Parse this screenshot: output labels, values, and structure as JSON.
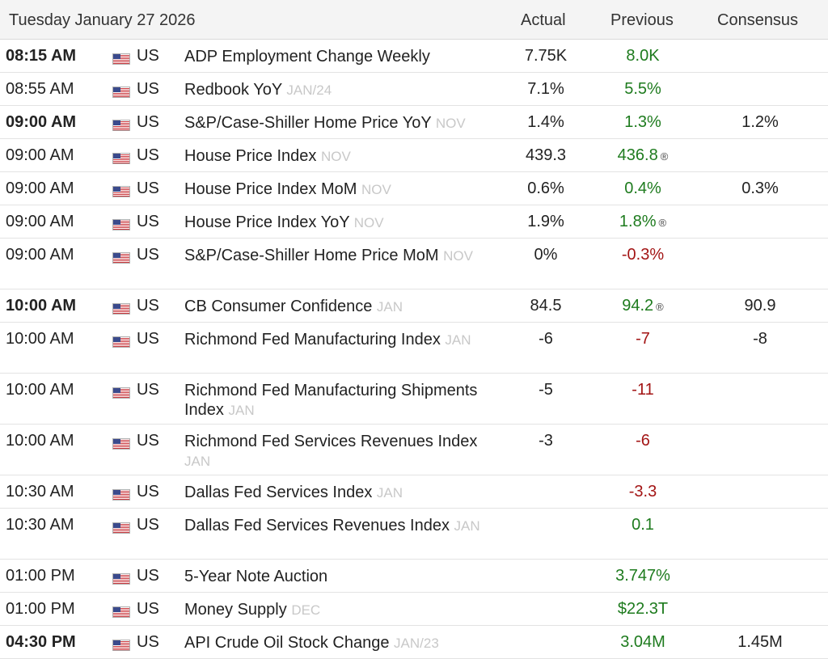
{
  "header": {
    "date": "Tuesday January 27 2026",
    "actual": "Actual",
    "previous": "Previous",
    "consensus": "Consensus"
  },
  "flag_icon": "us-flag-icon",
  "colors": {
    "positive": "#1e7b1e",
    "negative": "#a31515",
    "period": "#c8c8c8"
  },
  "rows": [
    {
      "time": "08:15 AM",
      "bold": true,
      "country": "US",
      "event": "ADP Employment Change Weekly",
      "period": "",
      "actual": "7.75K",
      "previous": "8.0K",
      "prev_color": "green",
      "revised": false,
      "consensus": ""
    },
    {
      "time": "08:55 AM",
      "bold": false,
      "country": "US",
      "event": "Redbook YoY",
      "period": "JAN/24",
      "actual": "7.1%",
      "previous": "5.5%",
      "prev_color": "green",
      "revised": false,
      "consensus": ""
    },
    {
      "time": "09:00 AM",
      "bold": true,
      "country": "US",
      "event": "S&P/Case-Shiller Home Price YoY",
      "period": "NOV",
      "actual": "1.4%",
      "previous": "1.3%",
      "prev_color": "green",
      "revised": false,
      "consensus": "1.2%"
    },
    {
      "time": "09:00 AM",
      "bold": false,
      "country": "US",
      "event": "House Price Index",
      "period": "NOV",
      "actual": "439.3",
      "previous": "436.8",
      "prev_color": "green",
      "revised": true,
      "consensus": ""
    },
    {
      "time": "09:00 AM",
      "bold": false,
      "country": "US",
      "event": "House Price Index MoM",
      "period": "NOV",
      "actual": "0.6%",
      "previous": "0.4%",
      "prev_color": "green",
      "revised": false,
      "consensus": "0.3%"
    },
    {
      "time": "09:00 AM",
      "bold": false,
      "country": "US",
      "event": "House Price Index YoY",
      "period": "NOV",
      "actual": "1.9%",
      "previous": "1.8%",
      "prev_color": "green",
      "revised": true,
      "consensus": ""
    },
    {
      "time": "09:00 AM",
      "bold": false,
      "country": "US",
      "event": "S&P/Case-Shiller Home Price MoM",
      "period": "NOV",
      "actual": "0%",
      "previous": "-0.3%",
      "prev_color": "red",
      "revised": false,
      "consensus": "",
      "tall": true
    },
    {
      "time": "10:00 AM",
      "bold": true,
      "country": "US",
      "event": "CB Consumer Confidence",
      "period": "JAN",
      "actual": "84.5",
      "previous": "94.2",
      "prev_color": "green",
      "revised": true,
      "consensus": "90.9",
      "cons_color": "green"
    },
    {
      "time": "10:00 AM",
      "bold": false,
      "country": "US",
      "event": "Richmond Fed Manufacturing Index",
      "period": "JAN",
      "actual": "-6",
      "previous": "-7",
      "prev_color": "red",
      "revised": false,
      "consensus": "-8",
      "tall": true
    },
    {
      "time": "10:00 AM",
      "bold": false,
      "country": "US",
      "event": "Richmond Fed Manufacturing Shipments Index",
      "period": "JAN",
      "actual": "-5",
      "previous": "-11",
      "prev_color": "red",
      "revised": false,
      "consensus": "",
      "tall": true
    },
    {
      "time": "10:00 AM",
      "bold": false,
      "country": "US",
      "event": "Richmond Fed Services Revenues Index",
      "period": "JAN",
      "actual": "-3",
      "previous": "-6",
      "prev_color": "red",
      "revised": false,
      "consensus": "",
      "tall": true
    },
    {
      "time": "10:30 AM",
      "bold": false,
      "country": "US",
      "event": "Dallas Fed Services Index",
      "period": "JAN",
      "actual": "",
      "previous": "-3.3",
      "prev_color": "red",
      "revised": false,
      "consensus": ""
    },
    {
      "time": "10:30 AM",
      "bold": false,
      "country": "US",
      "event": "Dallas Fed Services Revenues Index",
      "period": "JAN",
      "actual": "",
      "previous": "0.1",
      "prev_color": "green",
      "revised": false,
      "consensus": "",
      "tall": true
    },
    {
      "time": "01:00 PM",
      "bold": false,
      "country": "US",
      "event": "5-Year Note Auction",
      "period": "",
      "actual": "",
      "previous": "3.747%",
      "prev_color": "green",
      "revised": false,
      "consensus": ""
    },
    {
      "time": "01:00 PM",
      "bold": false,
      "country": "US",
      "event": "Money Supply",
      "period": "DEC",
      "actual": "",
      "previous": "$22.3T",
      "prev_color": "green",
      "revised": false,
      "consensus": ""
    },
    {
      "time": "04:30 PM",
      "bold": true,
      "country": "US",
      "event": "API Crude Oil Stock Change",
      "period": "JAN/23",
      "actual": "",
      "previous": "3.04M",
      "prev_color": "green",
      "revised": false,
      "consensus": "1.45M"
    }
  ],
  "revised_mark": "®"
}
